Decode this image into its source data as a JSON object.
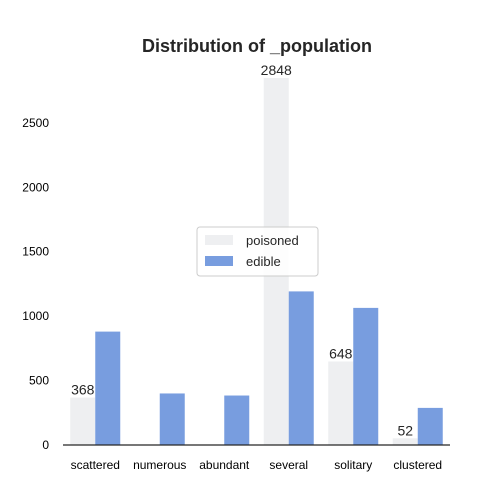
{
  "chart_data": {
    "type": "bar",
    "title": "Distribution of _population",
    "xlabel": "",
    "ylabel": "",
    "categories": [
      "scattered",
      "numerous",
      "abundant",
      "several",
      "solitary",
      "clustered"
    ],
    "series": [
      {
        "name": "poisoned",
        "values": [
          368,
          0,
          0,
          2848,
          648,
          52
        ],
        "color": "#eeeff1"
      },
      {
        "name": "edible",
        "values": [
          880,
          400,
          384,
          1192,
          1064,
          288
        ],
        "color": "#789ddf"
      }
    ],
    "data_labels": [
      "368",
      "",
      "",
      "2848",
      "648",
      "52"
    ],
    "yticks": [
      0,
      500,
      1000,
      1500,
      2000,
      2500
    ],
    "ylim": [
      0,
      2848
    ],
    "grid": false,
    "legend_position": "center"
  }
}
